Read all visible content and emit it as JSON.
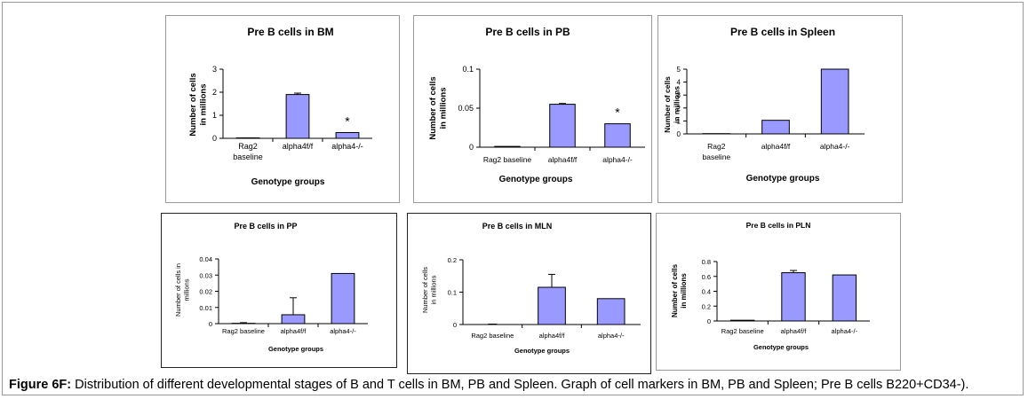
{
  "figure": {
    "caption_label": "Figure 6F:",
    "caption_text": " Distribution of different developmental stages of B and T cells in BM, PB and Spleen. Graph of cell markers in BM, PB and Spleen; Pre B cells B220+CD34-)."
  },
  "colors": {
    "bar_fill": "#9999ff",
    "bar_stroke": "#000000",
    "axis": "#000000"
  },
  "chart_data": [
    {
      "type": "bar",
      "title": "Pre B cells  in BM",
      "ylabel": "Number of cells in millions",
      "xlabel": "Genotype groups",
      "categories": [
        "Rag2 baseline",
        "alpha4f/f",
        "alpha4-/-"
      ],
      "values": [
        0.02,
        1.9,
        0.25
      ],
      "error": [
        0,
        0.06,
        0
      ],
      "annotations": [
        "",
        "",
        "*"
      ],
      "ylim": [
        0,
        3
      ],
      "yticks": [
        "0",
        "1",
        "2",
        "3"
      ],
      "grid": false
    },
    {
      "type": "bar",
      "title": "Pre B cells  in PB",
      "ylabel": "Number of cells in millions",
      "xlabel": "Genotype groups",
      "categories": [
        "Rag2 baseline",
        "alpha4f/f",
        "alpha4-/-"
      ],
      "values": [
        0.001,
        0.055,
        0.03
      ],
      "error": [
        0,
        0.001,
        0
      ],
      "annotations": [
        "",
        "",
        "*"
      ],
      "ylim": [
        0,
        0.1
      ],
      "yticks": [
        "0",
        "0.05",
        "0.1"
      ],
      "grid": false
    },
    {
      "type": "bar",
      "title": "Pre B cells  in Spleen",
      "ylabel": "Number of cells in millions",
      "xlabel": "Genotype groups",
      "categories": [
        "Rag2 baseline",
        "alpha4f/f",
        "alpha4-/-"
      ],
      "values": [
        0.02,
        1.05,
        5.0
      ],
      "error": [
        0,
        0,
        0
      ],
      "annotations": [
        "",
        "",
        ""
      ],
      "ylim": [
        0,
        5
      ],
      "yticks": [
        "0",
        "1",
        "2",
        "3",
        "4",
        "5"
      ],
      "grid": false
    },
    {
      "type": "bar",
      "title": "Pre B cells  in PP",
      "ylabel": "Number of cells in millions",
      "xlabel": "Genotype groups",
      "categories": [
        "Rag2 baseline",
        "alpha4f/f",
        "alpha4-/-"
      ],
      "values": [
        0.0002,
        0.0055,
        0.031
      ],
      "error": [
        0.0004,
        0.0105,
        0
      ],
      "annotations": [
        "",
        "",
        ""
      ],
      "ylim": [
        0,
        0.04
      ],
      "yticks": [
        "0",
        "0.01",
        "0.02",
        "0.03",
        "0.04"
      ],
      "grid": false
    },
    {
      "type": "bar",
      "title": "Pre B cells  in MLN",
      "ylabel": "Number of cells in millions",
      "xlabel": "Genotype groups",
      "categories": [
        "Rag2 baseline",
        "alpha4f/f",
        "alpha4-/-"
      ],
      "values": [
        0,
        0.115,
        0.08
      ],
      "error": [
        0,
        0.04,
        0
      ],
      "annotations": [
        "",
        "",
        ""
      ],
      "ylim": [
        0,
        0.2
      ],
      "yticks": [
        "0",
        "0.1",
        "0.2"
      ],
      "grid": false
    },
    {
      "type": "bar",
      "title": "Pre B cells in PLN",
      "ylabel": "Number of cells in millions",
      "xlabel": "Genotype groups",
      "categories": [
        "Rag2 baseline",
        "alpha4f/f",
        "alpha4-/-"
      ],
      "values": [
        0.01,
        0.65,
        0.62
      ],
      "error": [
        0,
        0.03,
        0
      ],
      "annotations": [
        "",
        "",
        ""
      ],
      "ylim": [
        0,
        0.8
      ],
      "yticks": [
        "0",
        "0.2",
        "0.4",
        "0.6",
        "0.8"
      ],
      "grid": false
    }
  ]
}
